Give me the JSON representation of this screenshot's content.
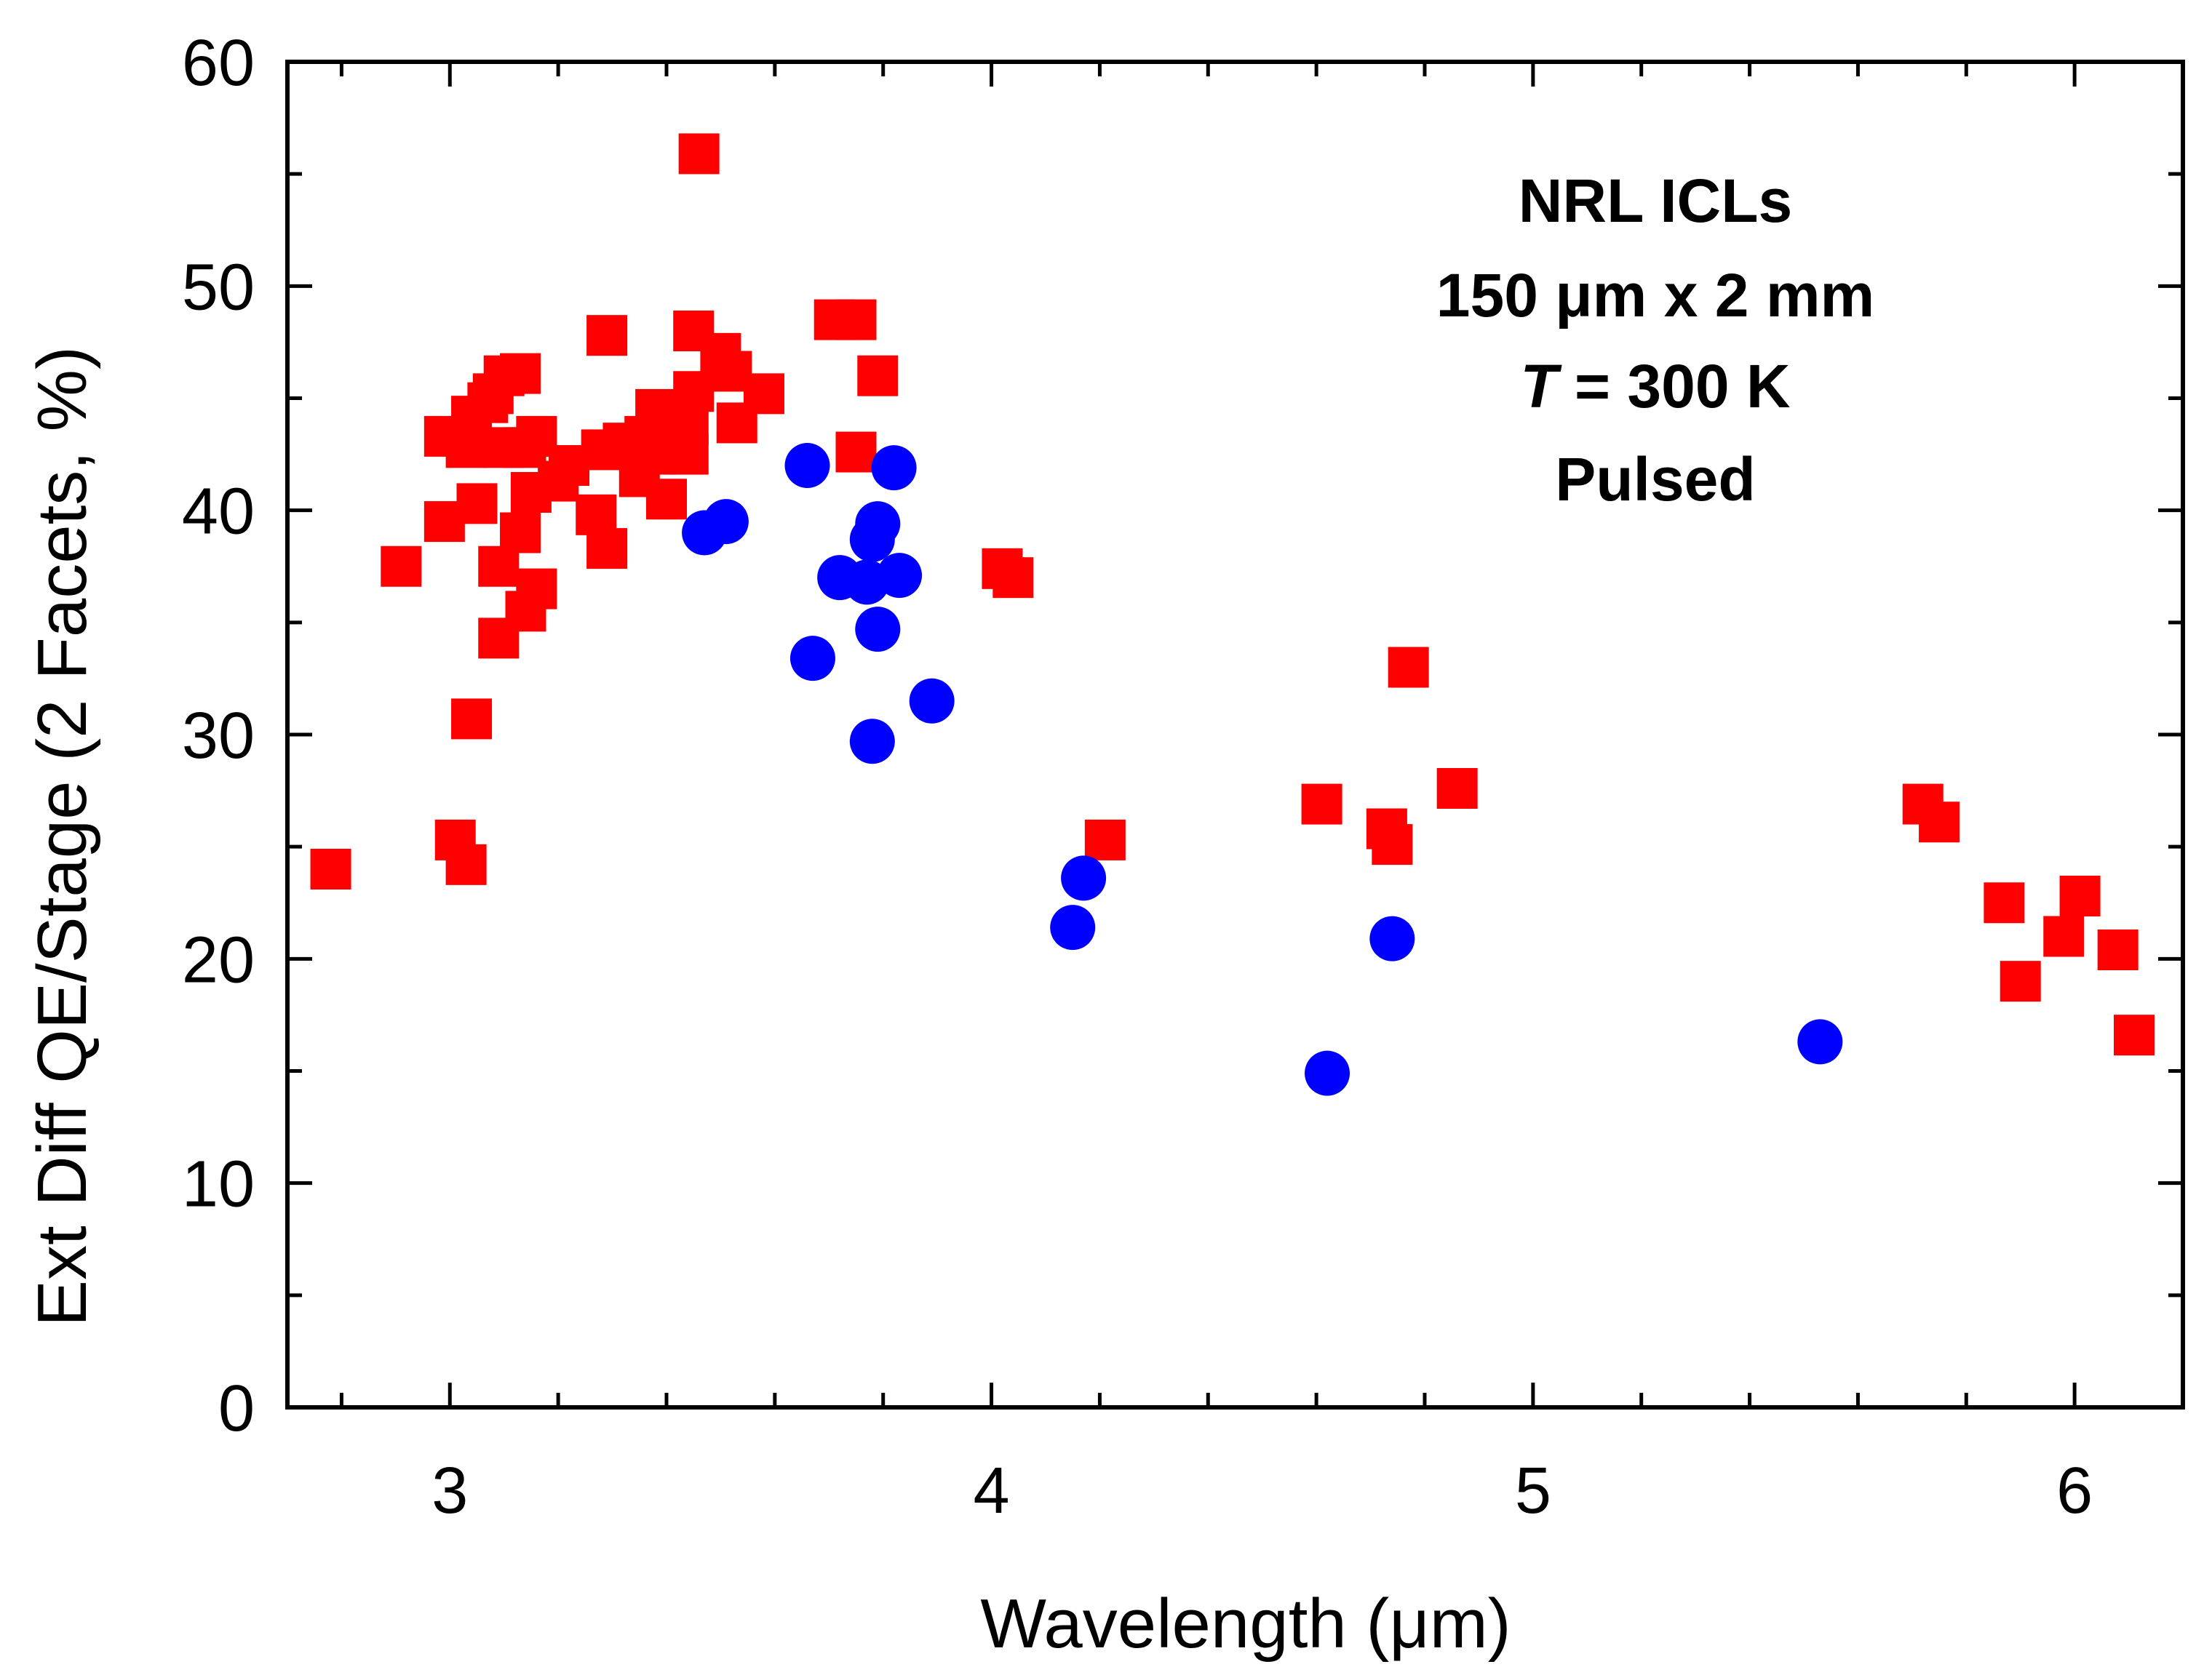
{
  "chart_data": {
    "type": "scatter",
    "title": "",
    "xlabel": "Wavelength (μm)",
    "ylabel": "Ext Diff QE/Stage (2 Facets, %)",
    "xlim": [
      2.7,
      6.2
    ],
    "ylim": [
      0,
      60
    ],
    "x_ticks": [
      3,
      4,
      5,
      6
    ],
    "y_ticks": [
      0,
      10,
      20,
      30,
      40,
      50,
      60
    ],
    "grid": false,
    "annotations": [
      "NRL ICLs",
      "150 μm x 2 mm",
      "T",
      " = 300 K",
      "Pulsed"
    ],
    "series": [
      {
        "marker": "square",
        "color": "#ff0000",
        "points": [
          [
            2.78,
            24.0
          ],
          [
            2.91,
            37.5
          ],
          [
            2.99,
            39.5
          ],
          [
            2.99,
            43.3
          ],
          [
            3.01,
            25.3
          ],
          [
            3.03,
            24.2
          ],
          [
            3.04,
            30.7
          ],
          [
            3.03,
            42.8
          ],
          [
            3.04,
            44.2
          ],
          [
            3.05,
            40.3
          ],
          [
            3.07,
            44.8
          ],
          [
            3.08,
            45.2
          ],
          [
            3.09,
            34.3
          ],
          [
            3.09,
            37.5
          ],
          [
            3.1,
            46.0
          ],
          [
            3.1,
            42.8
          ],
          [
            3.13,
            46.1
          ],
          [
            3.13,
            39.0
          ],
          [
            3.14,
            35.5
          ],
          [
            3.14,
            42.8
          ],
          [
            3.15,
            40.8
          ],
          [
            3.16,
            36.5
          ],
          [
            3.16,
            43.3
          ],
          [
            3.2,
            41.3
          ],
          [
            3.22,
            42.0
          ],
          [
            3.27,
            39.8
          ],
          [
            3.28,
            42.7
          ],
          [
            3.29,
            38.3
          ],
          [
            3.29,
            47.8
          ],
          [
            3.32,
            43.0
          ],
          [
            3.35,
            41.5
          ],
          [
            3.36,
            43.3
          ],
          [
            3.38,
            44.5
          ],
          [
            3.38,
            42.5
          ],
          [
            3.4,
            40.5
          ],
          [
            3.41,
            43.0
          ],
          [
            3.44,
            43.8
          ],
          [
            3.44,
            42.5
          ],
          [
            3.45,
            45.3
          ],
          [
            3.45,
            48.0
          ],
          [
            3.46,
            55.9
          ],
          [
            3.5,
            47.0
          ],
          [
            3.52,
            46.2
          ],
          [
            3.53,
            43.9
          ],
          [
            3.58,
            45.2
          ],
          [
            3.71,
            48.5
          ],
          [
            3.75,
            48.5
          ],
          [
            3.75,
            42.6
          ],
          [
            3.79,
            46.0
          ],
          [
            4.02,
            37.4
          ],
          [
            4.04,
            37.0
          ],
          [
            4.21,
            25.3
          ],
          [
            4.61,
            26.9
          ],
          [
            4.73,
            25.8
          ],
          [
            4.74,
            25.1
          ],
          [
            4.77,
            33.0
          ],
          [
            4.86,
            27.6
          ],
          [
            5.72,
            26.9
          ],
          [
            5.75,
            26.1
          ],
          [
            5.87,
            22.5
          ],
          [
            5.9,
            19.0
          ],
          [
            5.98,
            21.0
          ],
          [
            6.01,
            22.8
          ],
          [
            6.08,
            20.4
          ],
          [
            6.11,
            16.6
          ]
        ]
      },
      {
        "marker": "circle",
        "color": "#0000ff",
        "points": [
          [
            3.47,
            39.0
          ],
          [
            3.51,
            39.5
          ],
          [
            3.66,
            42.0
          ],
          [
            3.67,
            33.4
          ],
          [
            3.72,
            37.0
          ],
          [
            3.77,
            36.8
          ],
          [
            3.78,
            38.7
          ],
          [
            3.78,
            29.7
          ],
          [
            3.79,
            39.4
          ],
          [
            3.79,
            34.7
          ],
          [
            3.82,
            41.9
          ],
          [
            3.83,
            37.1
          ],
          [
            3.89,
            31.5
          ],
          [
            4.15,
            21.4
          ],
          [
            4.17,
            23.6
          ],
          [
            4.62,
            14.9
          ],
          [
            4.74,
            20.9
          ],
          [
            5.53,
            16.3
          ]
        ]
      }
    ]
  }
}
